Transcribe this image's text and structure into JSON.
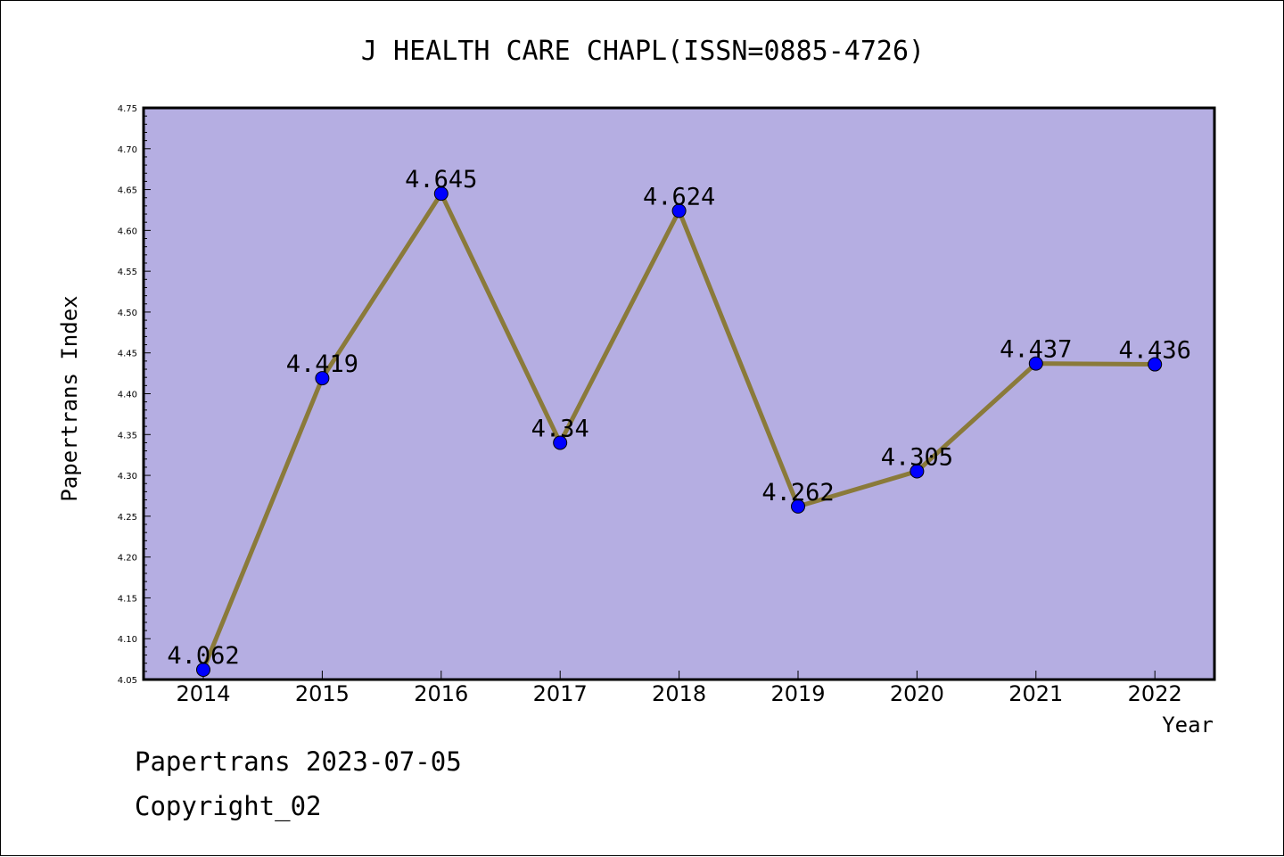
{
  "chart_data": {
    "type": "line",
    "title": "J HEALTH CARE CHAPL(ISSN=0885-4726)",
    "xlabel": "Year",
    "ylabel": "Papertrans Index",
    "categories": [
      "2014",
      "2015",
      "2016",
      "2017",
      "2018",
      "2019",
      "2020",
      "2021",
      "2022"
    ],
    "values": [
      4.062,
      4.419,
      4.645,
      4.34,
      4.624,
      4.262,
      4.305,
      4.437,
      4.436
    ],
    "data_labels": [
      "4.062",
      "4.419",
      "4.645",
      "4.34",
      "4.624",
      "4.262",
      "4.305",
      "4.437",
      "4.436"
    ],
    "ylim": [
      4.05,
      4.75
    ],
    "yticks": [
      "4.05",
      "4.10",
      "4.15",
      "4.20",
      "4.25",
      "4.30",
      "4.35",
      "4.40",
      "4.45",
      "4.50",
      "4.55",
      "4.60",
      "4.65",
      "4.70",
      "4.75"
    ],
    "grid": false,
    "colors": {
      "plot_background": "#b5aee2",
      "line": "#8a7a3a",
      "marker": "#0000ff"
    }
  },
  "footer": {
    "date_line": "Papertrans 2023-07-05",
    "copyright_line": "Copyright_02"
  }
}
